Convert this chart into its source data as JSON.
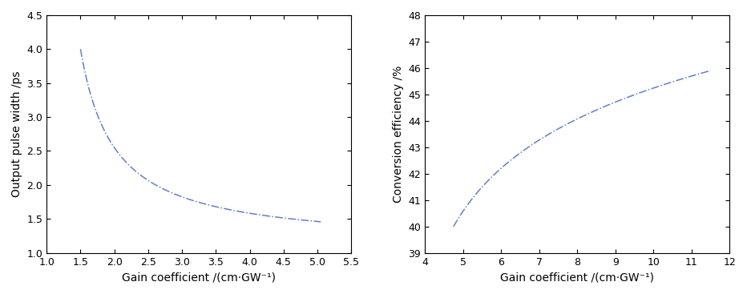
{
  "plot1": {
    "xlabel": "Gain coefficient /(cm·GW⁻¹)",
    "ylabel": "Output pulse width /ps",
    "xlim": [
      1.0,
      5.5
    ],
    "ylim": [
      1.0,
      4.5
    ],
    "xticks": [
      1.0,
      1.5,
      2.0,
      2.5,
      3.0,
      3.5,
      4.0,
      4.5,
      5.0,
      5.5
    ],
    "yticks": [
      1.0,
      1.5,
      2.0,
      2.5,
      3.0,
      3.5,
      4.0,
      4.5
    ],
    "x_start": 1.5,
    "x_end": 5.05,
    "curve_A": 3.875,
    "curve_B": 1.0,
    "curve_C": 0.875,
    "line_color": "#6080c8",
    "line_style": "-.",
    "line_width": 1.1
  },
  "plot2": {
    "xlabel": "Gain coefficient /(cm·GW⁻¹)",
    "ylabel": "Conversion efficiency /%",
    "xlim": [
      4.0,
      12.0
    ],
    "ylim": [
      39,
      48
    ],
    "xticks": [
      4,
      5,
      6,
      7,
      8,
      9,
      10,
      11,
      12
    ],
    "yticks": [
      39,
      40,
      41,
      42,
      43,
      44,
      45,
      46,
      47,
      48
    ],
    "x_start": 4.75,
    "x_end": 11.5,
    "curve_A": 5.6,
    "curve_B": 1.5,
    "curve_C": 32.88,
    "line_color": "#6080c8",
    "line_style": "-.",
    "line_width": 1.1
  }
}
